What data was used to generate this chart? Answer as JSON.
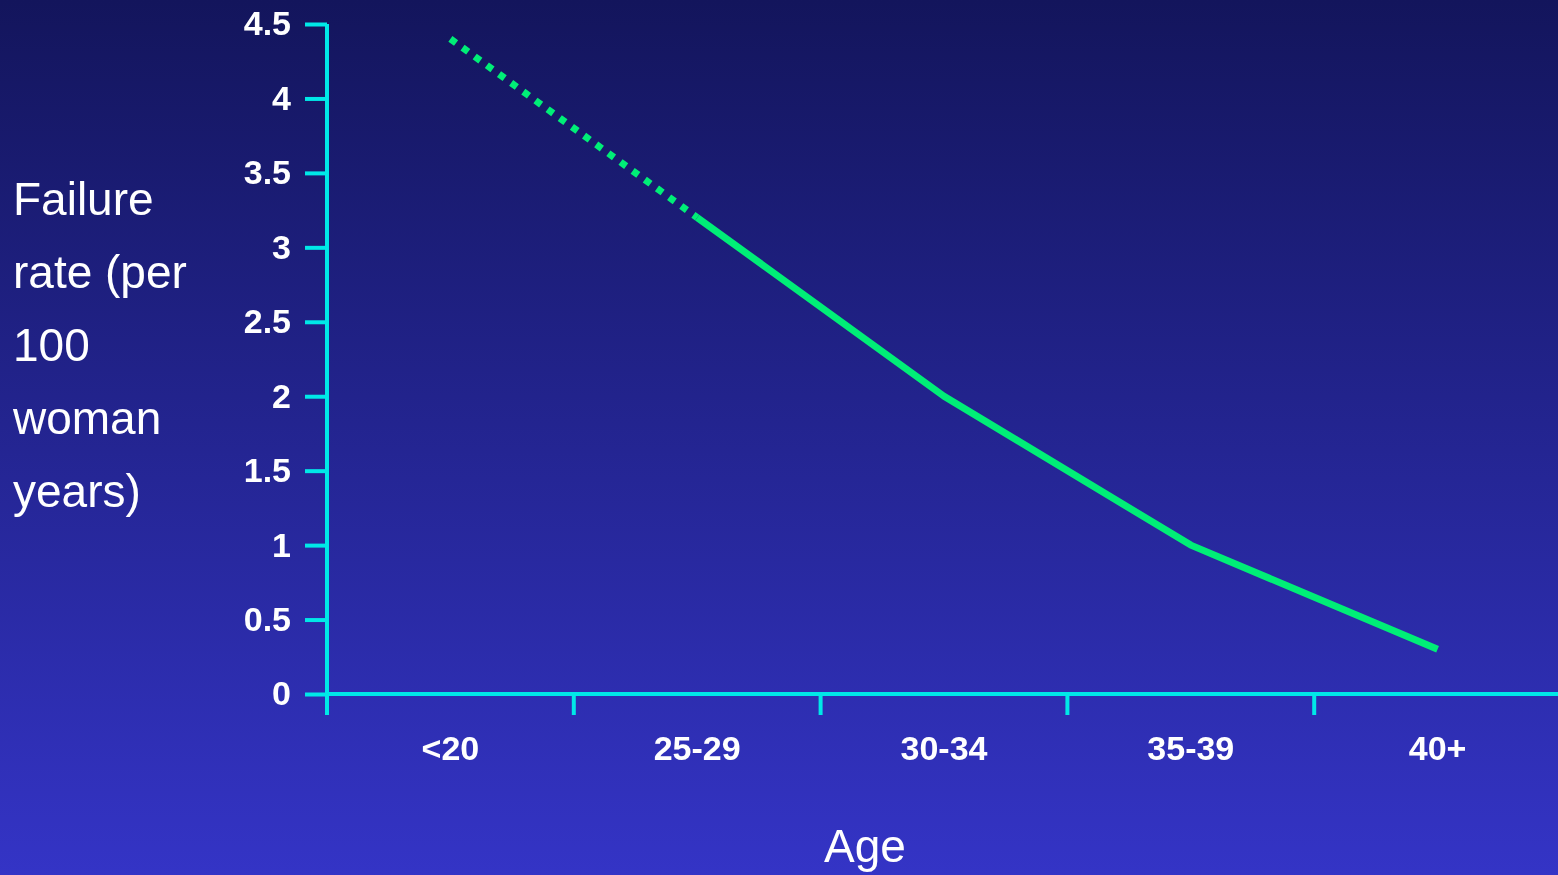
{
  "chart_data": {
    "type": "line",
    "xlabel": "Age",
    "ylabel": "Failure rate (per 100 woman years)",
    "categories": [
      "<20",
      "25-29",
      "30-34",
      "35-39",
      "40+"
    ],
    "series": [
      {
        "color": "#00ee77",
        "line_style": "dotted",
        "values": [
          4.4,
          3.2,
          null,
          null,
          null
        ]
      },
      {
        "color": "#00ee77",
        "line_style": "solid",
        "values": [
          null,
          3.2,
          2,
          1,
          0.3
        ]
      }
    ],
    "ylim": [
      0,
      4.5
    ],
    "yticks": [
      0,
      0.5,
      1,
      1.5,
      2,
      2.5,
      3,
      3.5,
      4,
      4.5
    ],
    "grid": false,
    "marker": "none"
  }
}
